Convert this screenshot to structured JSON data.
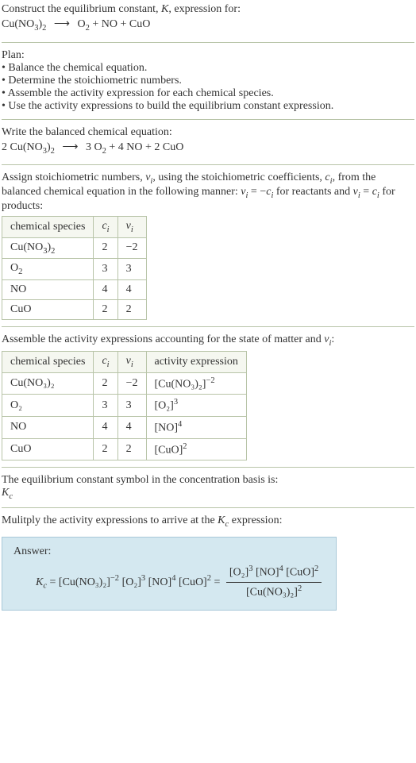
{
  "header": {
    "intro": "Construct the equilibrium constant, ",
    "K": "K",
    "intro2": ", expression for:",
    "eq_left": "Cu(NO",
    "eq_left_sub1": "3",
    "eq_left2": ")",
    "eq_left_sub2": "2",
    "arrow": "⟶",
    "eq_right": " O",
    "eq_right_sub": "2",
    "eq_right2": " + NO + CuO"
  },
  "plan": {
    "title": "Plan:",
    "b1": "• Balance the chemical equation.",
    "b2": "• Determine the stoichiometric numbers.",
    "b3": "• Assemble the activity expression for each chemical species.",
    "b4": "• Use the activity expressions to build the equilibrium constant expression."
  },
  "balanced": {
    "title": "Write the balanced chemical equation:",
    "l1": "2 Cu(NO",
    "l1s1": "3",
    "l2": ")",
    "l2s": "2",
    "arrow": "⟶",
    "r1": " 3 O",
    "r1s": "2",
    "r2": " + 4 NO + 2 CuO"
  },
  "stoich": {
    "t1": "Assign stoichiometric numbers, ",
    "nu": "ν",
    "i": "i",
    "t2": ", using the stoichiometric coefficients, ",
    "c": "c",
    "t3": ", from the balanced chemical equation in the following manner: ",
    "t4": " = −",
    "t5": " for reactants and ",
    "t6": " = ",
    "t7": " for products:",
    "headers": {
      "h1": "chemical species",
      "h2": "cᵢ",
      "h3": "νᵢ"
    },
    "rows": [
      {
        "sp1": "Cu(NO",
        "sp1s1": "3",
        "sp2": ")",
        "sp2s": "2",
        "c": "2",
        "n": "−2"
      },
      {
        "sp1": "O",
        "sp1s1": "2",
        "sp2": "",
        "sp2s": "",
        "c": "3",
        "n": "3"
      },
      {
        "sp1": "NO",
        "sp1s1": "",
        "sp2": "",
        "sp2s": "",
        "c": "4",
        "n": "4"
      },
      {
        "sp1": "CuO",
        "sp1s1": "",
        "sp2": "",
        "sp2s": "",
        "c": "2",
        "n": "2"
      }
    ]
  },
  "activity": {
    "title1": "Assemble the activity expressions accounting for the state of matter and ",
    "title2": ":",
    "headers": {
      "h1": "chemical species",
      "h2": "cᵢ",
      "h3": "νᵢ",
      "h4": "activity expression"
    },
    "rows": [
      {
        "sp": "Cu(NO₃)₂",
        "c": "2",
        "n": "−2",
        "ae_base": "[Cu(NO₃)₂]",
        "ae_exp": "−2"
      },
      {
        "sp": "O₂",
        "c": "3",
        "n": "3",
        "ae_base": "[O₂]",
        "ae_exp": "3"
      },
      {
        "sp": "NO",
        "c": "4",
        "n": "4",
        "ae_base": "[NO]",
        "ae_exp": "4"
      },
      {
        "sp": "CuO",
        "c": "2",
        "n": "2",
        "ae_base": "[CuO]",
        "ae_exp": "2"
      }
    ]
  },
  "symbol": {
    "t1": "The equilibrium constant symbol in the concentration basis is:",
    "K": "K",
    "c": "c"
  },
  "multiply": {
    "t1": "Mulitply the activity expressions to arrive at the ",
    "K": "K",
    "c": "c",
    "t2": " expression:"
  },
  "answer": {
    "label": "Answer:",
    "Kc_K": "K",
    "Kc_c": "c",
    "eq": " = ",
    "p1": "[Cu(NO₃)₂]",
    "p1e": "−2",
    "p2": " [O₂]",
    "p2e": "3",
    "p3": " [NO]",
    "p3e": "4",
    "p4": " [CuO]",
    "p4e": "2",
    "eq2": " = ",
    "num1": "[O₂]",
    "num1e": "3",
    "num2": " [NO]",
    "num2e": "4",
    "num3": " [CuO]",
    "num3e": "2",
    "den1": "[Cu(NO₃)₂]",
    "den1e": "2"
  }
}
